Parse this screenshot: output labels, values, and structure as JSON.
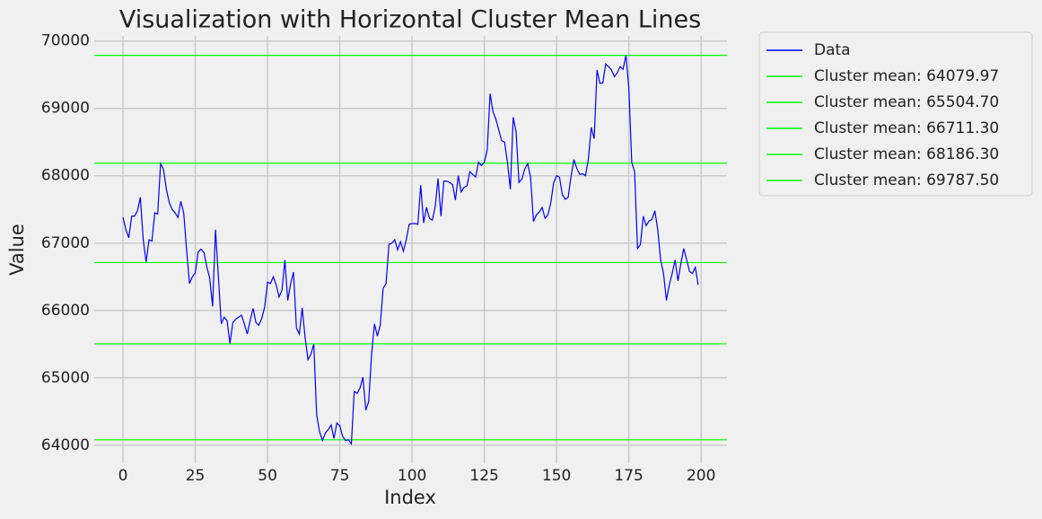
{
  "chart_data": {
    "type": "line",
    "title": "Visualization with Horizontal Cluster Mean Lines",
    "x_label": "Index",
    "y_label": "Value",
    "xlim": [
      -9.95,
      208.95
    ],
    "ylim": [
      63731.1,
      70076.0
    ],
    "xticks": [
      0,
      25,
      50,
      75,
      100,
      125,
      150,
      175,
      200
    ],
    "yticks": [
      64000,
      65000,
      66000,
      67000,
      68000,
      69000,
      70000
    ],
    "grid": true,
    "legend": "outside upper right",
    "x": [
      0,
      1,
      2,
      3,
      4,
      5,
      6,
      7,
      8,
      9,
      10,
      11,
      12,
      13,
      14,
      15,
      16,
      17,
      18,
      19,
      20,
      21,
      22,
      23,
      24,
      25,
      26,
      27,
      28,
      29,
      30,
      31,
      32,
      33,
      34,
      35,
      36,
      37,
      38,
      39,
      40,
      41,
      42,
      43,
      44,
      45,
      46,
      47,
      48,
      49,
      50,
      51,
      52,
      53,
      54,
      55,
      56,
      57,
      58,
      59,
      60,
      61,
      62,
      63,
      64,
      65,
      66,
      67,
      68,
      69,
      70,
      71,
      72,
      73,
      74,
      75,
      76,
      77,
      78,
      79,
      80,
      81,
      82,
      83,
      84,
      85,
      86,
      87,
      88,
      89,
      90,
      91,
      92,
      93,
      94,
      95,
      96,
      97,
      98,
      99,
      100,
      101,
      102,
      103,
      104,
      105,
      106,
      107,
      108,
      109,
      110,
      111,
      112,
      113,
      114,
      115,
      116,
      117,
      118,
      119,
      120,
      121,
      122,
      123,
      124,
      125,
      126,
      127,
      128,
      129,
      130,
      131,
      132,
      133,
      134,
      135,
      136,
      137,
      138,
      139,
      140,
      141,
      142,
      143,
      144,
      145,
      146,
      147,
      148,
      149,
      150,
      151,
      152,
      153,
      154,
      155,
      156,
      157,
      158,
      159,
      160,
      161,
      162,
      163,
      164,
      165,
      166,
      167,
      168,
      169,
      170,
      171,
      172,
      173,
      174,
      175,
      176,
      177,
      178,
      179,
      180,
      181,
      182,
      183,
      184,
      185,
      186,
      187,
      188,
      189,
      190,
      191,
      192,
      193,
      194,
      195,
      196,
      197,
      198,
      199
    ],
    "series": [
      {
        "name": "Data",
        "color": "#0000ff",
        "values": [
          67380,
          67200,
          67080,
          67400,
          67400,
          67480,
          67680,
          67050,
          66720,
          67050,
          67030,
          67450,
          67430,
          68180,
          68100,
          67800,
          67600,
          67500,
          67450,
          67380,
          67620,
          67450,
          66900,
          66400,
          66500,
          66560,
          66870,
          66910,
          66860,
          66650,
          66480,
          66060,
          67200,
          66500,
          65800,
          65900,
          65850,
          65510,
          65820,
          65870,
          65900,
          65930,
          65800,
          65650,
          65850,
          66030,
          65820,
          65780,
          65880,
          66050,
          66420,
          66400,
          66500,
          66380,
          66200,
          66300,
          66750,
          66150,
          66400,
          66570,
          65740,
          65650,
          66040,
          65600,
          65270,
          65350,
          65500,
          64450,
          64200,
          64070,
          64180,
          64230,
          64300,
          64100,
          64330,
          64290,
          64130,
          64070,
          64080,
          64020,
          64800,
          64770,
          64850,
          65010,
          64520,
          64650,
          65350,
          65800,
          65620,
          65780,
          66330,
          66400,
          66980,
          67000,
          67050,
          66900,
          67020,
          66880,
          67050,
          67280,
          67290,
          67290,
          67280,
          67860,
          67300,
          67530,
          67370,
          67340,
          67540,
          67960,
          67400,
          67920,
          67920,
          67900,
          67870,
          67640,
          68000,
          67760,
          67830,
          67850,
          68060,
          68020,
          67980,
          68200,
          68150,
          68200,
          68380,
          69220,
          68950,
          68840,
          68680,
          68520,
          68500,
          68200,
          67800,
          68870,
          68650,
          67900,
          67950,
          68100,
          68180,
          67980,
          67320,
          67420,
          67460,
          67530,
          67370,
          67420,
          67600,
          67900,
          68000,
          67980,
          67720,
          67650,
          67680,
          67990,
          68240,
          68110,
          68020,
          68030,
          68000,
          68250,
          68720,
          68550,
          69570,
          69370,
          69380,
          69660,
          69620,
          69570,
          69470,
          69530,
          69620,
          69580,
          69787.5,
          69300,
          68200,
          68060,
          66920,
          66980,
          67400,
          67260,
          67330,
          67350,
          67480,
          67200,
          66750,
          66550,
          66150,
          66380,
          66550,
          66750,
          66440,
          66700,
          66920,
          66750,
          66580,
          66550,
          66640,
          66380
        ]
      }
    ],
    "hlines": [
      {
        "name": "Cluster mean: 64079.97",
        "value": 64079.97,
        "color": "#00ff00"
      },
      {
        "name": "Cluster mean: 65504.70",
        "value": 65504.7,
        "color": "#00ff00"
      },
      {
        "name": "Cluster mean: 66711.30",
        "value": 66711.3,
        "color": "#00ff00"
      },
      {
        "name": "Cluster mean: 68186.30",
        "value": 68186.3,
        "color": "#00ff00"
      },
      {
        "name": "Cluster mean: 69787.50",
        "value": 69787.5,
        "color": "#00ff00"
      }
    ]
  }
}
